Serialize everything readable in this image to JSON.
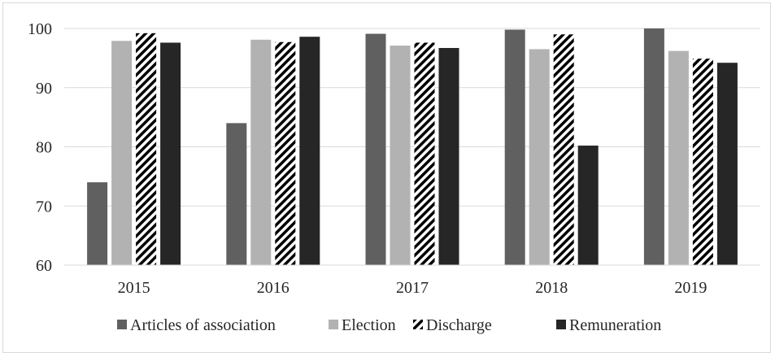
{
  "chart_data": {
    "type": "bar",
    "title": "",
    "xlabel": "",
    "ylabel": "",
    "categories": [
      "2015",
      "2016",
      "2017",
      "2018",
      "2019"
    ],
    "ylim": [
      60,
      100
    ],
    "yticks": [
      "60",
      "70",
      "80",
      "90",
      "100"
    ],
    "grid": "horizontal",
    "legend_position": "bottom",
    "series": [
      {
        "name": "Articles of association",
        "color": "#606060",
        "pattern": "solid",
        "values": [
          74.0,
          84.0,
          99.1,
          99.8,
          100.0
        ]
      },
      {
        "name": "Election",
        "color": "#b2b2b2",
        "pattern": "solid",
        "values": [
          97.9,
          98.1,
          97.1,
          96.5,
          96.2
        ]
      },
      {
        "name": "Discharge",
        "color": "#000000",
        "pattern": "diagonal-stripes",
        "values": [
          99.2,
          97.7,
          97.6,
          99.0,
          94.9
        ]
      },
      {
        "name": "Remuneration",
        "color": "#262626",
        "pattern": "solid",
        "values": [
          97.6,
          98.6,
          96.7,
          80.2,
          94.2
        ]
      }
    ]
  }
}
